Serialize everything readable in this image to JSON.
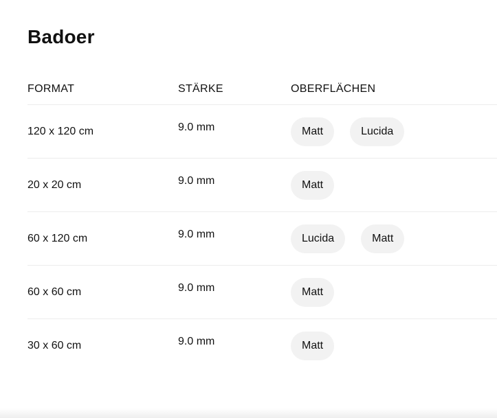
{
  "title": "Badoer",
  "columns": [
    "FORMAT",
    "STÄRKE",
    "OBERFLÄCHEN"
  ],
  "rows": [
    {
      "format": "120 x 120 cm",
      "thickness": "9.0 mm",
      "finishes": [
        "Matt",
        "Lucida"
      ]
    },
    {
      "format": "20 x 20 cm",
      "thickness": "9.0 mm",
      "finishes": [
        "Matt"
      ]
    },
    {
      "format": "60 x 120 cm",
      "thickness": "9.0 mm",
      "finishes": [
        "Lucida",
        "Matt"
      ]
    },
    {
      "format": "60 x 60 cm",
      "thickness": "9.0 mm",
      "finishes": [
        "Matt"
      ]
    },
    {
      "format": "30 x 60 cm",
      "thickness": "9.0 mm",
      "finishes": [
        "Matt"
      ]
    }
  ]
}
